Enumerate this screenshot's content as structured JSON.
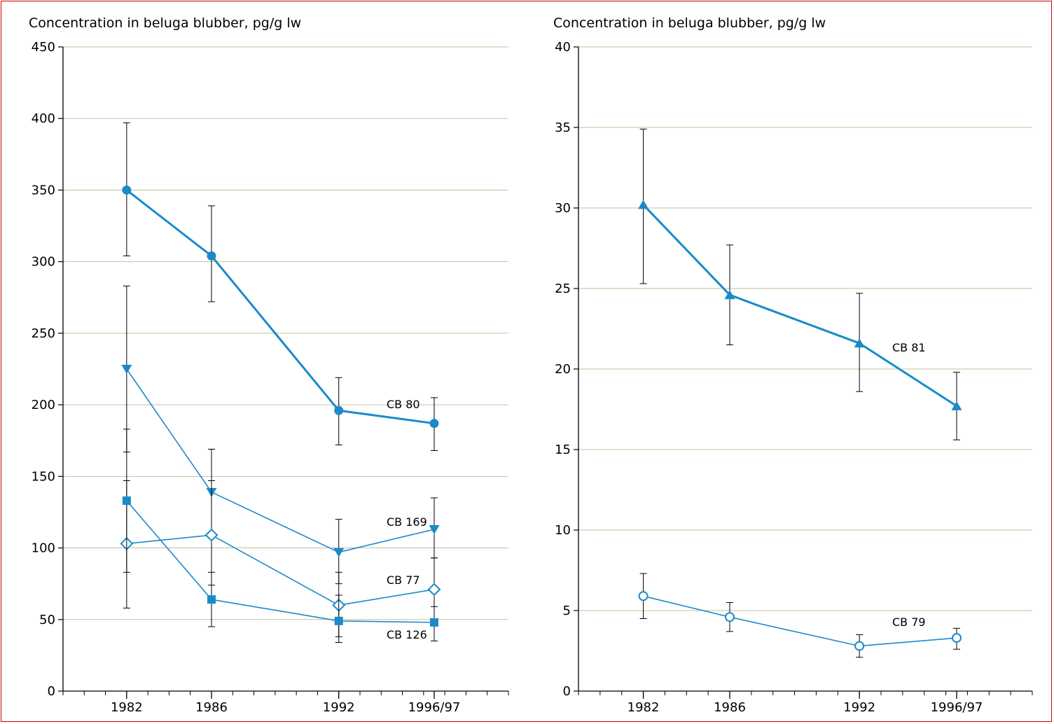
{
  "chart_data": [
    {
      "type": "line",
      "title": "",
      "ylabel": "Concentration in beluga blubber, pg/g lw",
      "xlabel": "",
      "ylim": [
        0,
        450
      ],
      "yticks": [
        0,
        50,
        100,
        150,
        200,
        250,
        300,
        350,
        400,
        450
      ],
      "xlim": [
        1979,
        2000
      ],
      "x": [
        1982,
        1986,
        1992,
        1996.5
      ],
      "xticklabels": [
        "1982",
        "1986",
        "1992",
        "1996/97"
      ],
      "grid": true,
      "series": [
        {
          "name": "CB 80",
          "marker": "circle-filled",
          "bold": true,
          "values": [
            350,
            304,
            196,
            187
          ],
          "err_low": [
            304,
            272,
            172,
            168
          ],
          "err_high": [
            397,
            339,
            219,
            205
          ]
        },
        {
          "name": "CB 169",
          "marker": "triangle-down-filled",
          "bold": false,
          "values": [
            225,
            139,
            97,
            113
          ],
          "err_low": [
            167,
            109,
            75,
            93
          ],
          "err_high": [
            283,
            169,
            120,
            135
          ]
        },
        {
          "name": "CB 77",
          "marker": "diamond-open",
          "bold": false,
          "values": [
            103,
            109,
            60,
            71
          ],
          "err_low": [
            58,
            74,
            34,
            48
          ],
          "err_high": [
            147,
            147,
            83,
            93
          ]
        },
        {
          "name": "CB 126",
          "marker": "square-filled",
          "bold": false,
          "values": [
            133,
            64,
            49,
            48
          ],
          "err_low": [
            83,
            45,
            38,
            35
          ],
          "err_high": [
            183,
            83,
            67,
            59
          ]
        }
      ]
    },
    {
      "type": "line",
      "title": "",
      "ylabel": "Concentration in beluga blubber, pg/g lw",
      "xlabel": "",
      "ylim": [
        0,
        40
      ],
      "yticks": [
        0,
        5,
        10,
        15,
        20,
        25,
        30,
        35,
        40
      ],
      "xlim": [
        1979,
        2000
      ],
      "x": [
        1982,
        1986,
        1992,
        1996.5
      ],
      "xticklabels": [
        "1982",
        "1986",
        "1992",
        "1996/97"
      ],
      "grid": true,
      "series": [
        {
          "name": "CB 81",
          "marker": "triangle-up-filled",
          "bold": true,
          "values": [
            30.2,
            24.6,
            21.6,
            17.7
          ],
          "err_low": [
            25.3,
            21.5,
            18.6,
            15.6
          ],
          "err_high": [
            34.9,
            27.7,
            24.7,
            19.8
          ]
        },
        {
          "name": "CB 79",
          "marker": "circle-open",
          "bold": false,
          "values": [
            5.9,
            4.6,
            2.8,
            3.3
          ],
          "err_low": [
            4.5,
            3.7,
            2.1,
            2.6
          ],
          "err_high": [
            7.3,
            5.5,
            3.5,
            3.9
          ]
        }
      ]
    }
  ],
  "colors": {
    "series": "#1a8ac9",
    "grid": "#c2c29a",
    "axis": "#000000",
    "errorbar": "#000000",
    "border": "#d00000"
  }
}
